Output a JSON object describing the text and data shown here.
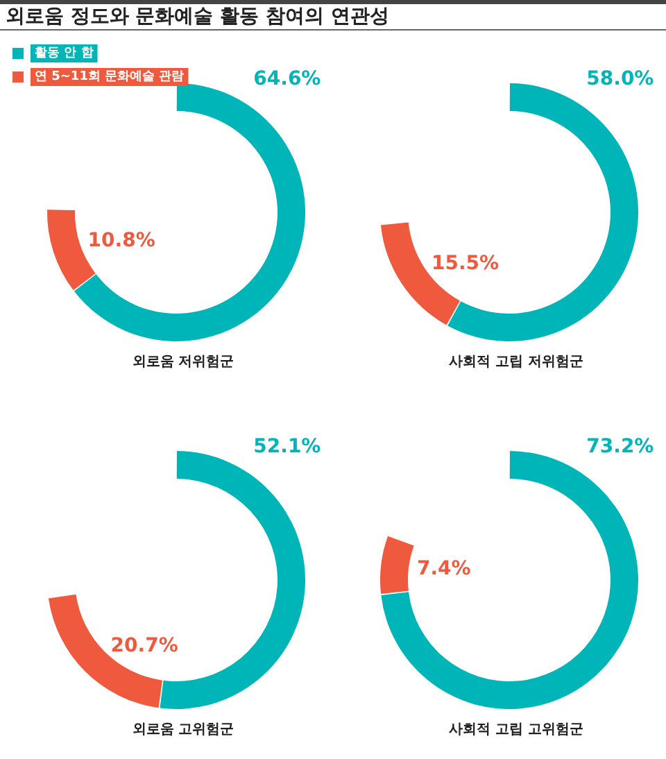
{
  "chart_data": [
    {
      "type": "donut",
      "title": "외로움 정도와 문화예술 활동 참여의 연관성",
      "xlabel": "외로움 저위험군",
      "categories": [
        "활동 안 함",
        "연 5~11회 문화예술 관람"
      ],
      "values": [
        64.6,
        10.8
      ],
      "value_labels": [
        "64.6%",
        "10.8%"
      ],
      "colors": [
        "#00b5b8",
        "#ef5a3e"
      ],
      "legend": "top left"
    },
    {
      "type": "donut",
      "xlabel": "사회적 고립 저위험군",
      "categories": [
        null,
        null
      ],
      "values": [
        58.0,
        15.5
      ],
      "value_labels": [
        "58.0%",
        "15.5%"
      ],
      "colors": [
        "#00b5b8",
        "#ef5a3e"
      ]
    },
    {
      "type": "donut",
      "xlabel": "외로움 고위험군",
      "categories": [
        null,
        null
      ],
      "values": [
        52.1,
        20.7
      ],
      "value_labels": [
        "52.1%",
        "20.7%"
      ],
      "colors": [
        "#00b5b8",
        "#ef5a3e"
      ]
    },
    {
      "type": "donut",
      "xlabel": "사회적 고립 고위험군",
      "categories": [
        null,
        null
      ],
      "values": [
        73.2,
        7.4
      ],
      "value_labels": [
        "73.2%",
        "7.4%"
      ],
      "colors": [
        "#00b5b8",
        "#ef5a3e"
      ]
    }
  ]
}
